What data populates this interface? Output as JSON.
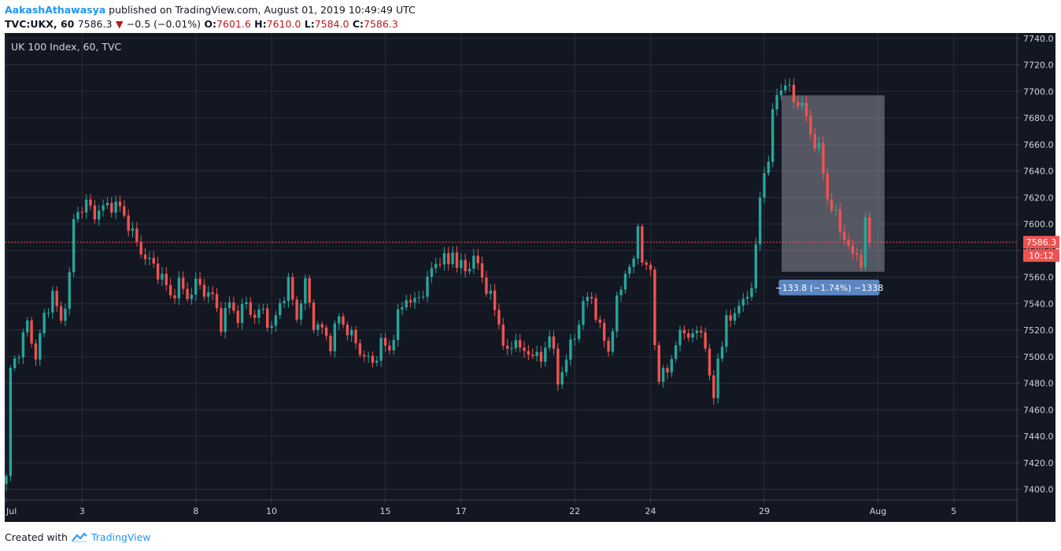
{
  "header": {
    "author": "AakashAthawasya",
    "published_text": "published on TradingView.com, August 01, 2019 10:49:49 UTC",
    "symbol": "TVC:UKX, 60",
    "last": "7586.3",
    "change": "−0.5 (−0.01%)",
    "open_label": "O:",
    "open": "7601.6",
    "high_label": "H:",
    "high": "7610.0",
    "low_label": "L:",
    "low": "7584.0",
    "close_label": "C:",
    "close": "7586.3"
  },
  "chart_data": {
    "type": "candlestick",
    "legend_title": "UK 100 Index, 60, TVC",
    "ylim": [
      7392,
      7744
    ],
    "y_ticks": [
      7400,
      7420,
      7440,
      7460,
      7480,
      7500,
      7520,
      7540,
      7560,
      7580,
      7600,
      7620,
      7640,
      7660,
      7680,
      7700,
      7720,
      7740
    ],
    "x_ticks": [
      {
        "label": "Jul",
        "bar": 0
      },
      {
        "label": "3",
        "bar": 18
      },
      {
        "label": "8",
        "bar": 45
      },
      {
        "label": "10",
        "bar": 63
      },
      {
        "label": "15",
        "bar": 90
      },
      {
        "label": "17",
        "bar": 108
      },
      {
        "label": "22",
        "bar": 135
      },
      {
        "label": "24",
        "bar": 153
      },
      {
        "label": "29",
        "bar": 180
      },
      {
        "label": "Aug",
        "bar": 207
      },
      {
        "label": "5",
        "bar": 225
      }
    ],
    "close_waypoints": [
      [
        0,
        7410
      ],
      [
        1,
        7490
      ],
      [
        3,
        7505
      ],
      [
        5,
        7525
      ],
      [
        7,
        7500
      ],
      [
        9,
        7530
      ],
      [
        11,
        7548
      ],
      [
        13,
        7525
      ],
      [
        15,
        7560
      ],
      [
        16,
        7602
      ],
      [
        17,
        7610
      ],
      [
        19,
        7615
      ],
      [
        21,
        7608
      ],
      [
        23,
        7612
      ],
      [
        25,
        7615
      ],
      [
        27,
        7612
      ],
      [
        29,
        7600
      ],
      [
        31,
        7585
      ],
      [
        33,
        7575
      ],
      [
        35,
        7568
      ],
      [
        37,
        7560
      ],
      [
        39,
        7545
      ],
      [
        41,
        7555
      ],
      [
        43,
        7545
      ],
      [
        45,
        7555
      ],
      [
        47,
        7550
      ],
      [
        49,
        7545
      ],
      [
        51,
        7525
      ],
      [
        53,
        7540
      ],
      [
        55,
        7530
      ],
      [
        57,
        7540
      ],
      [
        59,
        7530
      ],
      [
        61,
        7535
      ],
      [
        63,
        7520
      ],
      [
        65,
        7540
      ],
      [
        67,
        7555
      ],
      [
        69,
        7530
      ],
      [
        71,
        7555
      ],
      [
        73,
        7525
      ],
      [
        75,
        7520
      ],
      [
        77,
        7510
      ],
      [
        79,
        7530
      ],
      [
        81,
        7520
      ],
      [
        83,
        7510
      ],
      [
        85,
        7500
      ],
      [
        87,
        7495
      ],
      [
        89,
        7510
      ],
      [
        91,
        7505
      ],
      [
        93,
        7530
      ],
      [
        95,
        7545
      ],
      [
        97,
        7540
      ],
      [
        99,
        7550
      ],
      [
        101,
        7565
      ],
      [
        103,
        7575
      ],
      [
        105,
        7570
      ],
      [
        106,
        7580
      ],
      [
        107,
        7570
      ],
      [
        109,
        7565
      ],
      [
        111,
        7575
      ],
      [
        113,
        7560
      ],
      [
        115,
        7545
      ],
      [
        117,
        7525
      ],
      [
        119,
        7500
      ],
      [
        121,
        7515
      ],
      [
        123,
        7500
      ],
      [
        125,
        7505
      ],
      [
        127,
        7495
      ],
      [
        129,
        7520
      ],
      [
        130,
        7500
      ],
      [
        131,
        7480
      ],
      [
        133,
        7500
      ],
      [
        135,
        7515
      ],
      [
        137,
        7540
      ],
      [
        139,
        7545
      ],
      [
        141,
        7520
      ],
      [
        143,
        7505
      ],
      [
        145,
        7540
      ],
      [
        147,
        7565
      ],
      [
        149,
        7570
      ],
      [
        150,
        7600
      ],
      [
        151,
        7575
      ],
      [
        152,
        7565
      ],
      [
        153,
        7565
      ],
      [
        154,
        7510
      ],
      [
        155,
        7485
      ],
      [
        156,
        7485
      ],
      [
        157,
        7490
      ],
      [
        159,
        7510
      ],
      [
        161,
        7520
      ],
      [
        163,
        7515
      ],
      [
        165,
        7520
      ],
      [
        166,
        7510
      ],
      [
        167,
        7480
      ],
      [
        168,
        7470
      ],
      [
        169,
        7500
      ],
      [
        170,
        7510
      ],
      [
        171,
        7525
      ],
      [
        173,
        7535
      ],
      [
        175,
        7540
      ],
      [
        177,
        7555
      ],
      [
        178,
        7580
      ],
      [
        179,
        7620
      ],
      [
        180,
        7640
      ],
      [
        181,
        7650
      ],
      [
        182,
        7680
      ],
      [
        183,
        7700
      ],
      [
        185,
        7705
      ],
      [
        187,
        7695
      ],
      [
        189,
        7688
      ],
      [
        190,
        7680
      ],
      [
        191,
        7670
      ],
      [
        192,
        7660
      ],
      [
        193,
        7655
      ],
      [
        194,
        7640
      ],
      [
        195,
        7620
      ],
      [
        196,
        7612
      ],
      [
        197,
        7605
      ],
      [
        198,
        7598
      ],
      [
        199,
        7590
      ],
      [
        200,
        7582
      ],
      [
        201,
        7575
      ],
      [
        202,
        7580
      ],
      [
        203,
        7570
      ],
      [
        204,
        7600
      ],
      [
        205,
        7586.3
      ]
    ],
    "last_price": 7586.3,
    "last_price_label": "7586.3",
    "countdown_label": "10:12",
    "measure": {
      "from_bar": 183,
      "to_bar": 208,
      "y_top": 7697,
      "y_bottom": 7564,
      "label": "−133.8 (−1.74%) −1338"
    },
    "colors": {
      "background": "#131722",
      "up": "#26a69a",
      "down": "#ef5350",
      "grid": "#2a2e39",
      "text": "#d1d4dc",
      "measure_fill": "#9598a1",
      "measure_label_bg": "#5b86c2",
      "price_line": "#ef5350"
    }
  },
  "footer": {
    "created_text": "Created with",
    "brand_text": "TradingView",
    "logo_icon": "tradingview-cloud-icon"
  }
}
